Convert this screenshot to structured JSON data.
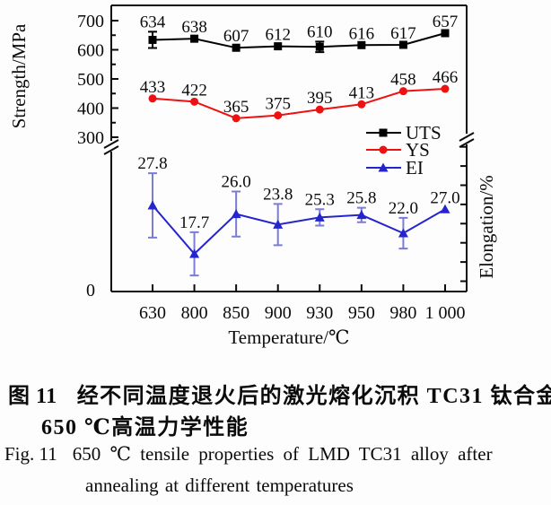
{
  "chart_data": {
    "type": "line",
    "title": "",
    "xlabel": "Temperature/℃",
    "ylabel_left": "Strength/MPa",
    "ylabel_right": "Elongation/%",
    "categories": [
      "630",
      "800",
      "850",
      "900",
      "930",
      "950",
      "980",
      "1 000"
    ],
    "y_left_ticks": [
      700,
      600,
      500,
      400,
      300
    ],
    "y_left_minor_ticks": [
      650,
      550,
      450,
      350
    ],
    "y_left_range_shown": [
      300,
      700
    ],
    "y_left_axis_break": true,
    "y_right_axis_break": true,
    "origin_label": "0",
    "grid": false,
    "legend_position": "inside-middle-right",
    "series": [
      {
        "name": "UTS",
        "axis": "left",
        "color": "#000000",
        "marker": "square",
        "values": [
          634,
          638,
          607,
          612,
          610,
          616,
          617,
          657
        ],
        "labels": [
          "634",
          "638",
          "607",
          "612",
          "610",
          "616",
          "617",
          "657"
        ],
        "err": [
          28,
          0,
          0,
          0,
          18,
          0,
          0,
          0
        ]
      },
      {
        "name": "YS",
        "axis": "left",
        "color": "#ee1111",
        "marker": "circle",
        "values": [
          433,
          422,
          365,
          375,
          395,
          413,
          458,
          466
        ],
        "labels": [
          "433",
          "422",
          "365",
          "375",
          "395",
          "413",
          "458",
          "466"
        ],
        "err": [
          0,
          0,
          0,
          0,
          0,
          0,
          0,
          0
        ]
      },
      {
        "name": "EI",
        "axis": "right",
        "color": "#2525cd",
        "err_color": "#7b7bd8",
        "marker": "triangle",
        "values": [
          27.8,
          17.7,
          26.0,
          23.8,
          25.3,
          25.8,
          22.0,
          27.0
        ],
        "labels": [
          "27.8",
          "17.7",
          "26.0",
          "23.8",
          "25.3",
          "25.8",
          "22.0",
          "27.0"
        ],
        "err": [
          6.7,
          4.5,
          4.7,
          4.3,
          1.7,
          1.5,
          3.2,
          0
        ]
      }
    ],
    "legend": [
      "UTS",
      "YS",
      "EI"
    ]
  },
  "caption": {
    "zh_label": "图 11",
    "zh_text": "经不同温度退火后的激光熔化沉积 TC31 钛合金",
    "zh_line2": "650 ℃高温力学性能",
    "en_label": "Fig. 11",
    "en_text": "650 ℃ tensile properties of LMD TC31 alloy after",
    "en_line2": "annealing at different temperatures"
  }
}
